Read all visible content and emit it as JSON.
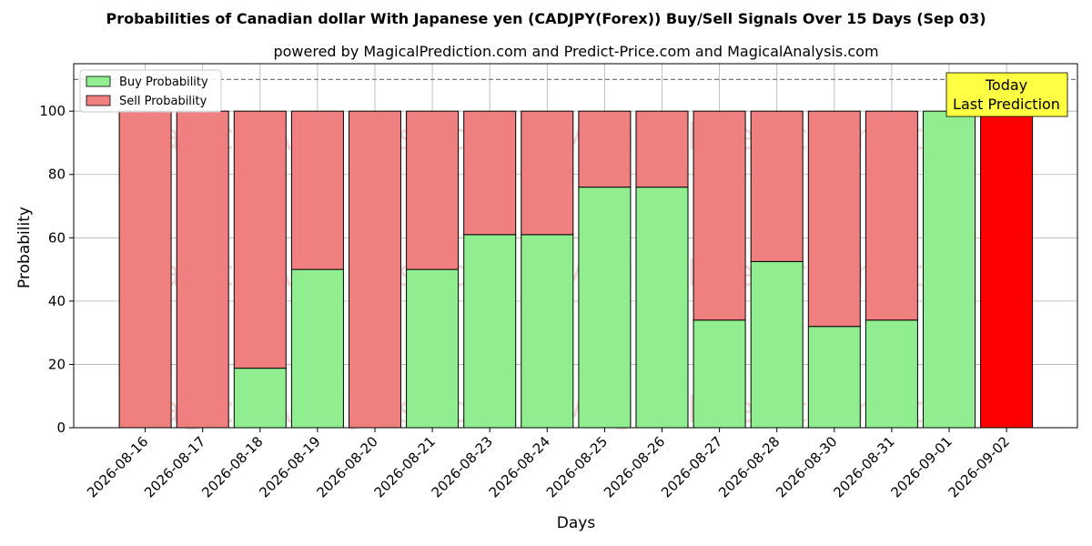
{
  "chart_data": {
    "type": "bar",
    "stacked": true,
    "title": "Probabilities of Canadian dollar With Japanese yen (CADJPY(Forex)) Buy/Sell Signals Over 15 Days (Sep 03)",
    "subtitle": "powered by MagicalPrediction.com and Predict-Price.com and MagicalAnalysis.com",
    "xlabel": "Days",
    "ylabel": "Probability",
    "ylim": [
      0,
      115
    ],
    "yticks": [
      0,
      20,
      40,
      60,
      80,
      100
    ],
    "grid": true,
    "legend_position": "top-left",
    "reference_line": 110,
    "categories": [
      "2026-08-16",
      "2026-08-17",
      "2026-08-18",
      "2026-08-19",
      "2026-08-20",
      "2026-08-21",
      "2026-08-23",
      "2026-08-24",
      "2026-08-25",
      "2026-08-26",
      "2026-08-27",
      "2026-08-28",
      "2026-08-30",
      "2026-08-31",
      "2026-09-01",
      "2026-09-02"
    ],
    "series": [
      {
        "name": "Buy Probability",
        "color": "#90ee90",
        "values": [
          0,
          0,
          18.8,
          50,
          0,
          50,
          61,
          61,
          76,
          76,
          34,
          52.5,
          32,
          34,
          100,
          0
        ]
      },
      {
        "name": "Sell Probability",
        "color": "#f08080",
        "values": [
          100,
          100,
          81.2,
          50,
          100,
          50,
          39,
          39,
          24,
          24,
          66,
          47.5,
          68,
          66,
          0,
          100
        ]
      }
    ],
    "highlight": {
      "index": 15,
      "color": "#ff0000"
    },
    "annotation": {
      "line1": "Today",
      "line2": "Last Prediction",
      "background": "#ffff44"
    },
    "watermarks": [
      "MagicalAnalysis.com",
      "MagicalPrediction.com"
    ]
  }
}
